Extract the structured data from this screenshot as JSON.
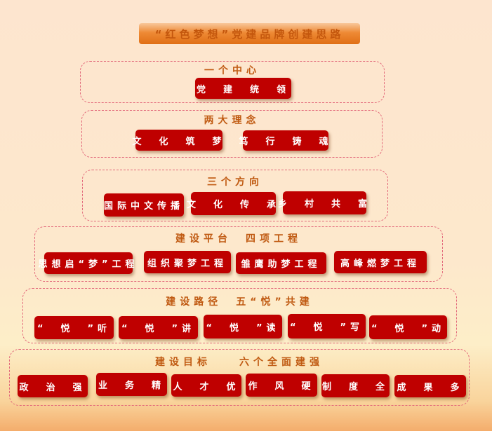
{
  "title": "“红色梦想”党建品牌创建思路",
  "colors": {
    "button": "#bf0000",
    "heading": "#c05a12",
    "border": "#e2687a"
  },
  "sections": [
    {
      "heading": "一个中心",
      "items": [
        "党　建　统　领"
      ]
    },
    {
      "heading": "两大理念",
      "items": [
        "文　化　筑　梦",
        "笃　行　铸　魂"
      ]
    },
    {
      "heading": "三个方向",
      "items": [
        "国际中文传播",
        "文　化　传　承",
        "乡　村　共　富"
      ]
    },
    {
      "heading": "建设平台　四项工程",
      "items": [
        "思想启“梦”工程",
        "组织聚梦工程",
        "雏鹰助梦工程",
        "高峰燃梦工程"
      ]
    },
    {
      "heading": "建设路径　五“悦”共建",
      "items": [
        "“　悦　”听",
        "“　悦　”讲",
        "“　悦　”读",
        "“　悦　”写",
        "“　悦　”动"
      ]
    },
    {
      "heading": "建设目标　　六个全面建强",
      "items": [
        "政　治　强",
        "业　务　精",
        "人　才　优",
        "作　风　硬",
        "制　度　全",
        "成　果　多"
      ]
    }
  ]
}
